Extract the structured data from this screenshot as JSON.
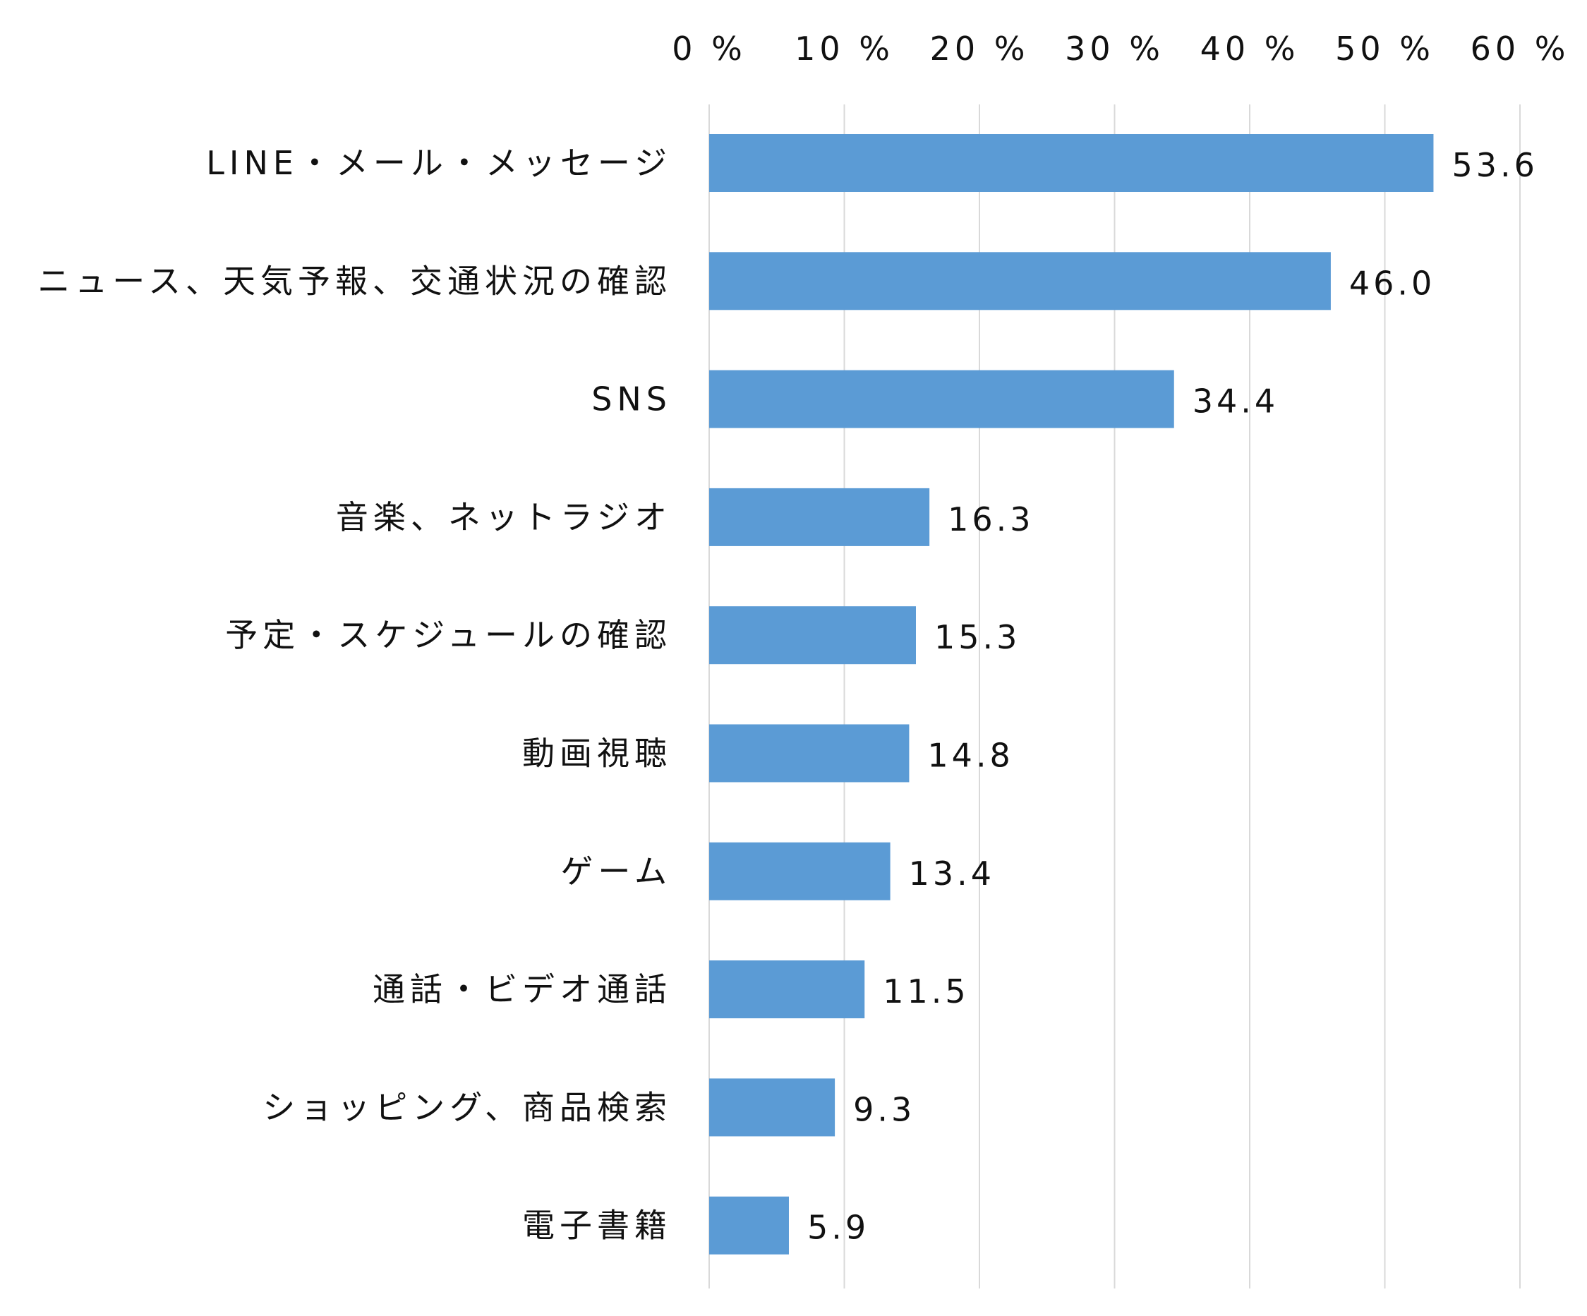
{
  "chart_data": {
    "type": "bar",
    "orientation": "horizontal",
    "categories": [
      "LINE・メール・メッセージ",
      "ニュース、天気予報、交通状況の確認",
      "SNS",
      "音楽、ネットラジオ",
      "予定・スケジュールの確認",
      "動画視聴",
      "ゲーム",
      "通話・ビデオ通話",
      "ショッピング、商品検索",
      "電子書籍"
    ],
    "values": [
      53.6,
      46.0,
      34.4,
      16.3,
      15.3,
      14.8,
      13.4,
      11.5,
      9.3,
      5.9
    ],
    "value_labels": [
      "53.6",
      "46.0",
      "34.4",
      "16.3",
      "15.3",
      "14.8",
      "13.4",
      "11.5",
      "9.3",
      "5.9"
    ],
    "x_ticks": [
      0,
      10,
      20,
      30,
      40,
      50,
      60
    ],
    "x_tick_labels": [
      "0 %",
      "10 %",
      "20 %",
      "30 %",
      "40 %",
      "50 %",
      "60 %"
    ],
    "xlim": [
      0,
      60
    ],
    "x_axis_position": "top",
    "grid": "vertical",
    "bar_color": "#5b9bd5",
    "grid_color": "#d9d9d9",
    "title": "",
    "xlabel": "",
    "ylabel": ""
  }
}
